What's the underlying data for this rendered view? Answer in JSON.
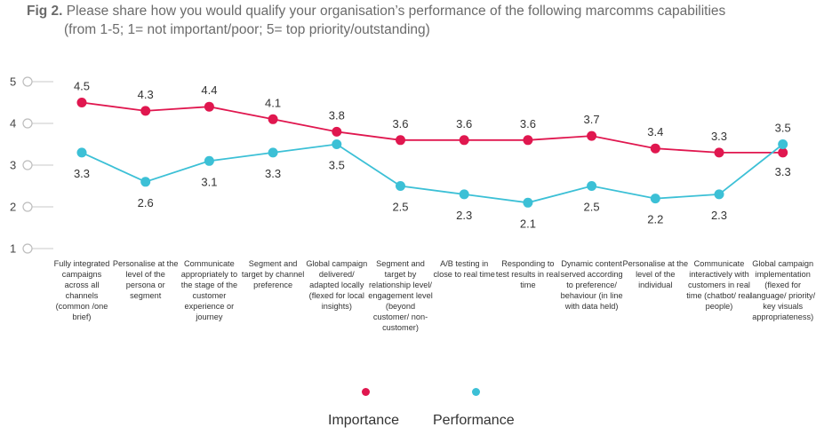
{
  "header": {
    "fig": "Fig 2.",
    "line1": "Please share how you would qualify your organisation’s performance of the following marcomms capabilities",
    "line2": "(from 1-5; 1= not important/poor; 5= top priority/outstanding)"
  },
  "chart_data": {
    "type": "line",
    "categories": [
      "Fully integrated campaigns across all channels (common /one brief)",
      "Personalise at the level of the persona or segment",
      "Communicate appropriately to the stage of the customer experience or journey",
      "Segment and target by channel preference",
      "Global campaign delivered/ adapted locally (flexed for local insights)",
      "Segment and target by relationship level/ engagement level (beyond customer/ non-customer)",
      "A/B testing in close to real time",
      "Responding to test results in real time",
      "Dynamic content served according to preference/ behaviour (in line with data held)",
      "Personalise at the level of the individual",
      "Communicate interactively with customers in real time (chatbot/ real people)",
      "Global campaign implementation (flexed for language/ priority/ key visuals appropriateness)"
    ],
    "series": [
      {
        "name": "Importance",
        "color": "#e0174f",
        "values": [
          4.5,
          4.3,
          4.4,
          4.1,
          3.8,
          3.6,
          3.6,
          3.6,
          3.7,
          3.4,
          3.3,
          3.3
        ],
        "labels": [
          "4.5",
          "4.3",
          "4.4",
          "4.1",
          "3.8",
          "3.6",
          "3.6",
          "3.6",
          "3.7",
          "3.4",
          "3.3",
          "3.3"
        ]
      },
      {
        "name": "Performance",
        "color": "#3cc0d6",
        "values": [
          3.3,
          2.6,
          3.1,
          3.3,
          3.5,
          2.5,
          2.3,
          2.1,
          2.5,
          2.2,
          2.3,
          3.5
        ],
        "labels": [
          "3.3",
          "2.6",
          "3.1",
          "3.3",
          "3.5",
          "2.5",
          "2.3",
          "2.1",
          "2.5",
          "2.2",
          "2.3",
          "3.5"
        ]
      }
    ],
    "yticks": [
      "5",
      "4",
      "3",
      "2",
      "1"
    ],
    "ylim": [
      1,
      5
    ],
    "grid": false,
    "legend": "bottom-center"
  }
}
